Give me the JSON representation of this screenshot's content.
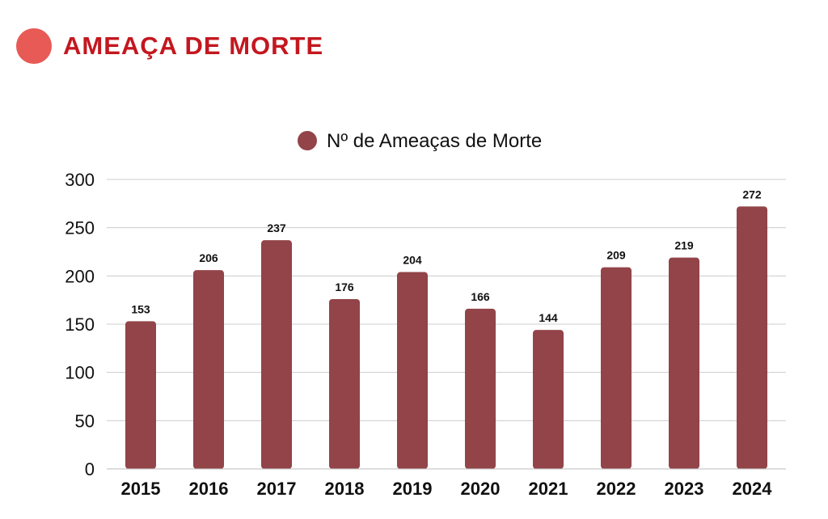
{
  "header": {
    "title": "AMEAÇA DE MORTE",
    "icon": "red-circle-icon",
    "icon_color": "#e85a55",
    "title_color": "#c4171f"
  },
  "chart_data": {
    "type": "bar",
    "title": "",
    "xlabel": "",
    "ylabel": "",
    "categories": [
      "2015",
      "2016",
      "2017",
      "2018",
      "2019",
      "2020",
      "2021",
      "2022",
      "2023",
      "2024"
    ],
    "series": [
      {
        "name": "Nº de Ameaças de Morte",
        "color": "#924448",
        "values": [
          153,
          206,
          237,
          176,
          204,
          166,
          144,
          209,
          219,
          272
        ]
      }
    ],
    "ylim": [
      0,
      300
    ],
    "yticks": [
      0,
      50,
      100,
      150,
      200,
      250,
      300
    ],
    "grid": true,
    "legend": "top-center",
    "data_labels": true
  }
}
